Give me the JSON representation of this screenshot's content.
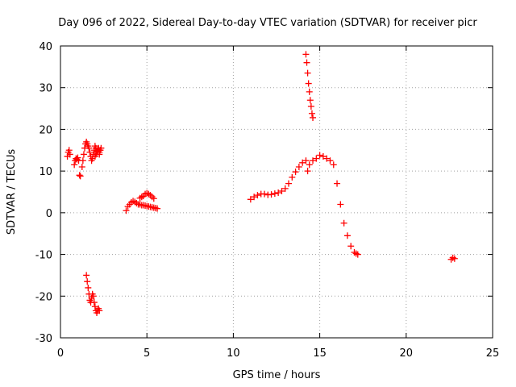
{
  "chart_data": {
    "type": "scatter",
    "title": "Day 096 of 2022, Sidereal Day-to-day VTEC variation (SDTVAR) for receiver picr",
    "xlabel": "GPS time / hours",
    "ylabel": "SDTVAR / TECUs",
    "xlim": [
      0,
      25
    ],
    "ylim": [
      -30,
      40
    ],
    "xticks": [
      "0",
      "5",
      "10",
      "15",
      "20",
      "25"
    ],
    "yticks": [
      "-30",
      "-20",
      "-10",
      "0",
      "10",
      "20",
      "30",
      "40"
    ],
    "grid": true,
    "marker": "plus",
    "colors": {
      "series": "#ff0000",
      "grid": "#a0a0a0",
      "axis": "#000000"
    },
    "series": [
      {
        "name": "SDTVAR",
        "x": [
          0.4,
          0.45,
          0.5,
          0.55,
          0.8,
          0.85,
          0.9,
          0.95,
          1.0,
          1.05,
          1.1,
          1.15,
          1.25,
          1.3,
          1.35,
          1.4,
          1.45,
          1.5,
          1.55,
          1.6,
          1.65,
          1.7,
          1.75,
          1.8,
          1.85,
          1.9,
          1.95,
          2.0,
          2.05,
          2.1,
          2.15,
          2.2,
          2.25,
          2.3,
          2.35,
          2.0,
          2.05,
          2.1,
          2.15,
          2.2,
          2.25,
          2.3,
          1.5,
          1.55,
          1.6,
          1.65,
          1.7,
          1.75,
          1.8,
          1.85,
          1.9,
          1.95,
          2.0,
          2.05,
          2.1,
          2.15,
          2.2,
          2.25,
          3.8,
          3.9,
          4.0,
          4.1,
          4.2,
          4.3,
          4.4,
          4.5,
          4.6,
          4.7,
          4.8,
          4.9,
          5.0,
          5.1,
          5.2,
          5.3,
          5.4,
          5.5,
          5.6,
          4.6,
          4.7,
          4.8,
          4.9,
          5.0,
          5.1,
          5.2,
          5.3,
          5.4,
          11.0,
          11.2,
          11.4,
          11.6,
          11.8,
          12.0,
          12.2,
          12.4,
          12.6,
          12.8,
          13.0,
          13.2,
          13.4,
          13.6,
          13.8,
          14.0,
          14.2,
          14.3,
          14.4,
          14.6,
          14.8,
          15.0,
          15.2,
          15.4,
          15.6,
          15.8,
          16.0,
          16.2,
          16.4,
          16.6,
          16.8,
          17.0,
          17.1,
          17.2,
          14.2,
          14.25,
          14.3,
          14.35,
          14.4,
          14.45,
          14.5,
          14.55,
          14.6,
          22.6,
          22.7,
          22.8
        ],
        "y": [
          13.5,
          14.5,
          15.0,
          14.0,
          11.5,
          12.5,
          13.0,
          12.8,
          13.2,
          12.5,
          9.0,
          8.8,
          11.0,
          12.5,
          14.0,
          15.5,
          16.5,
          17.0,
          16.5,
          16.0,
          15.5,
          14.5,
          13.5,
          12.5,
          13.0,
          14.0,
          15.0,
          16.0,
          15.5,
          14.5,
          14.8,
          15.2,
          14.5,
          15.0,
          15.5,
          13.5,
          14.0,
          14.5,
          15.0,
          15.5,
          14.0,
          15.0,
          -15.0,
          -16.5,
          -18.0,
          -19.5,
          -21.0,
          -21.5,
          -20.5,
          -19.5,
          -20.0,
          -21.5,
          -22.5,
          -23.5,
          -24.0,
          -23.5,
          -23.0,
          -23.5,
          0.5,
          1.5,
          2.0,
          2.5,
          2.8,
          2.6,
          2.3,
          2.0,
          2.0,
          1.8,
          1.8,
          1.7,
          1.6,
          1.5,
          1.4,
          1.3,
          1.2,
          1.1,
          1.0,
          3.5,
          3.8,
          4.0,
          4.5,
          4.7,
          4.5,
          4.2,
          3.8,
          3.4,
          3.2,
          3.8,
          4.2,
          4.5,
          4.5,
          4.3,
          4.4,
          4.6,
          4.8,
          5.2,
          5.8,
          7.0,
          8.5,
          9.8,
          11.0,
          12.0,
          12.5,
          10.0,
          11.5,
          12.5,
          13.0,
          13.8,
          13.5,
          13.0,
          12.5,
          11.5,
          7.0,
          2.0,
          -2.5,
          -5.5,
          -8.0,
          -9.5,
          -9.8,
          -10.0,
          38.0,
          36.0,
          33.5,
          31.0,
          29.0,
          27.0,
          25.5,
          23.8,
          22.8,
          -11.2,
          -10.8,
          -11.0
        ]
      }
    ]
  }
}
